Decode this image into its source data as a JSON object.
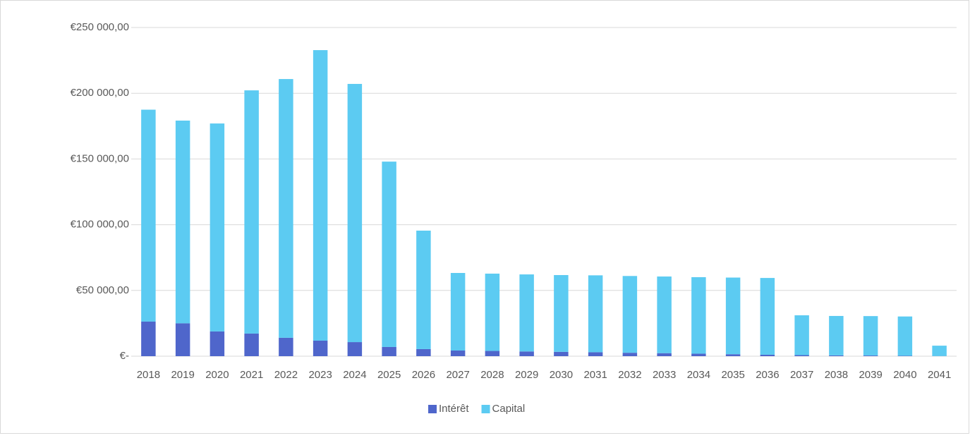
{
  "chart_data": {
    "type": "stacked_bar",
    "categories": [
      "2018",
      "2019",
      "2020",
      "2021",
      "2022",
      "2023",
      "2024",
      "2025",
      "2026",
      "2027",
      "2028",
      "2029",
      "2030",
      "2031",
      "2032",
      "2033",
      "2034",
      "2035",
      "2036",
      "2037",
      "2038",
      "2039",
      "2040",
      "2041"
    ],
    "series": [
      {
        "name": "Intérêt",
        "color": "#4f66cb",
        "values": [
          26300,
          25000,
          18800,
          17200,
          14000,
          11800,
          10700,
          7000,
          5400,
          4300,
          4000,
          3600,
          3300,
          3000,
          2600,
          2300,
          1900,
          1500,
          1100,
          800,
          600,
          500,
          300,
          100
        ]
      },
      {
        "name": "Capital",
        "color": "#5ccbf2",
        "values": [
          161200,
          154200,
          158200,
          185000,
          196800,
          221000,
          196400,
          141000,
          90100,
          59000,
          58800,
          58600,
          58400,
          58500,
          58400,
          58300,
          58200,
          58300,
          58400,
          30300,
          30000,
          30000,
          29900,
          7900
        ]
      }
    ],
    "ylim": [
      0,
      250000
    ],
    "yticks": [
      {
        "value": 0,
        "label": "€-"
      },
      {
        "value": 50000,
        "label": "€50 000,00"
      },
      {
        "value": 100000,
        "label": "€100 000,00"
      },
      {
        "value": 150000,
        "label": "€150 000,00"
      },
      {
        "value": 200000,
        "label": "€200 000,00"
      },
      {
        "value": 250000,
        "label": "€250 000,00"
      }
    ],
    "grid": true,
    "legend": "bottom"
  }
}
